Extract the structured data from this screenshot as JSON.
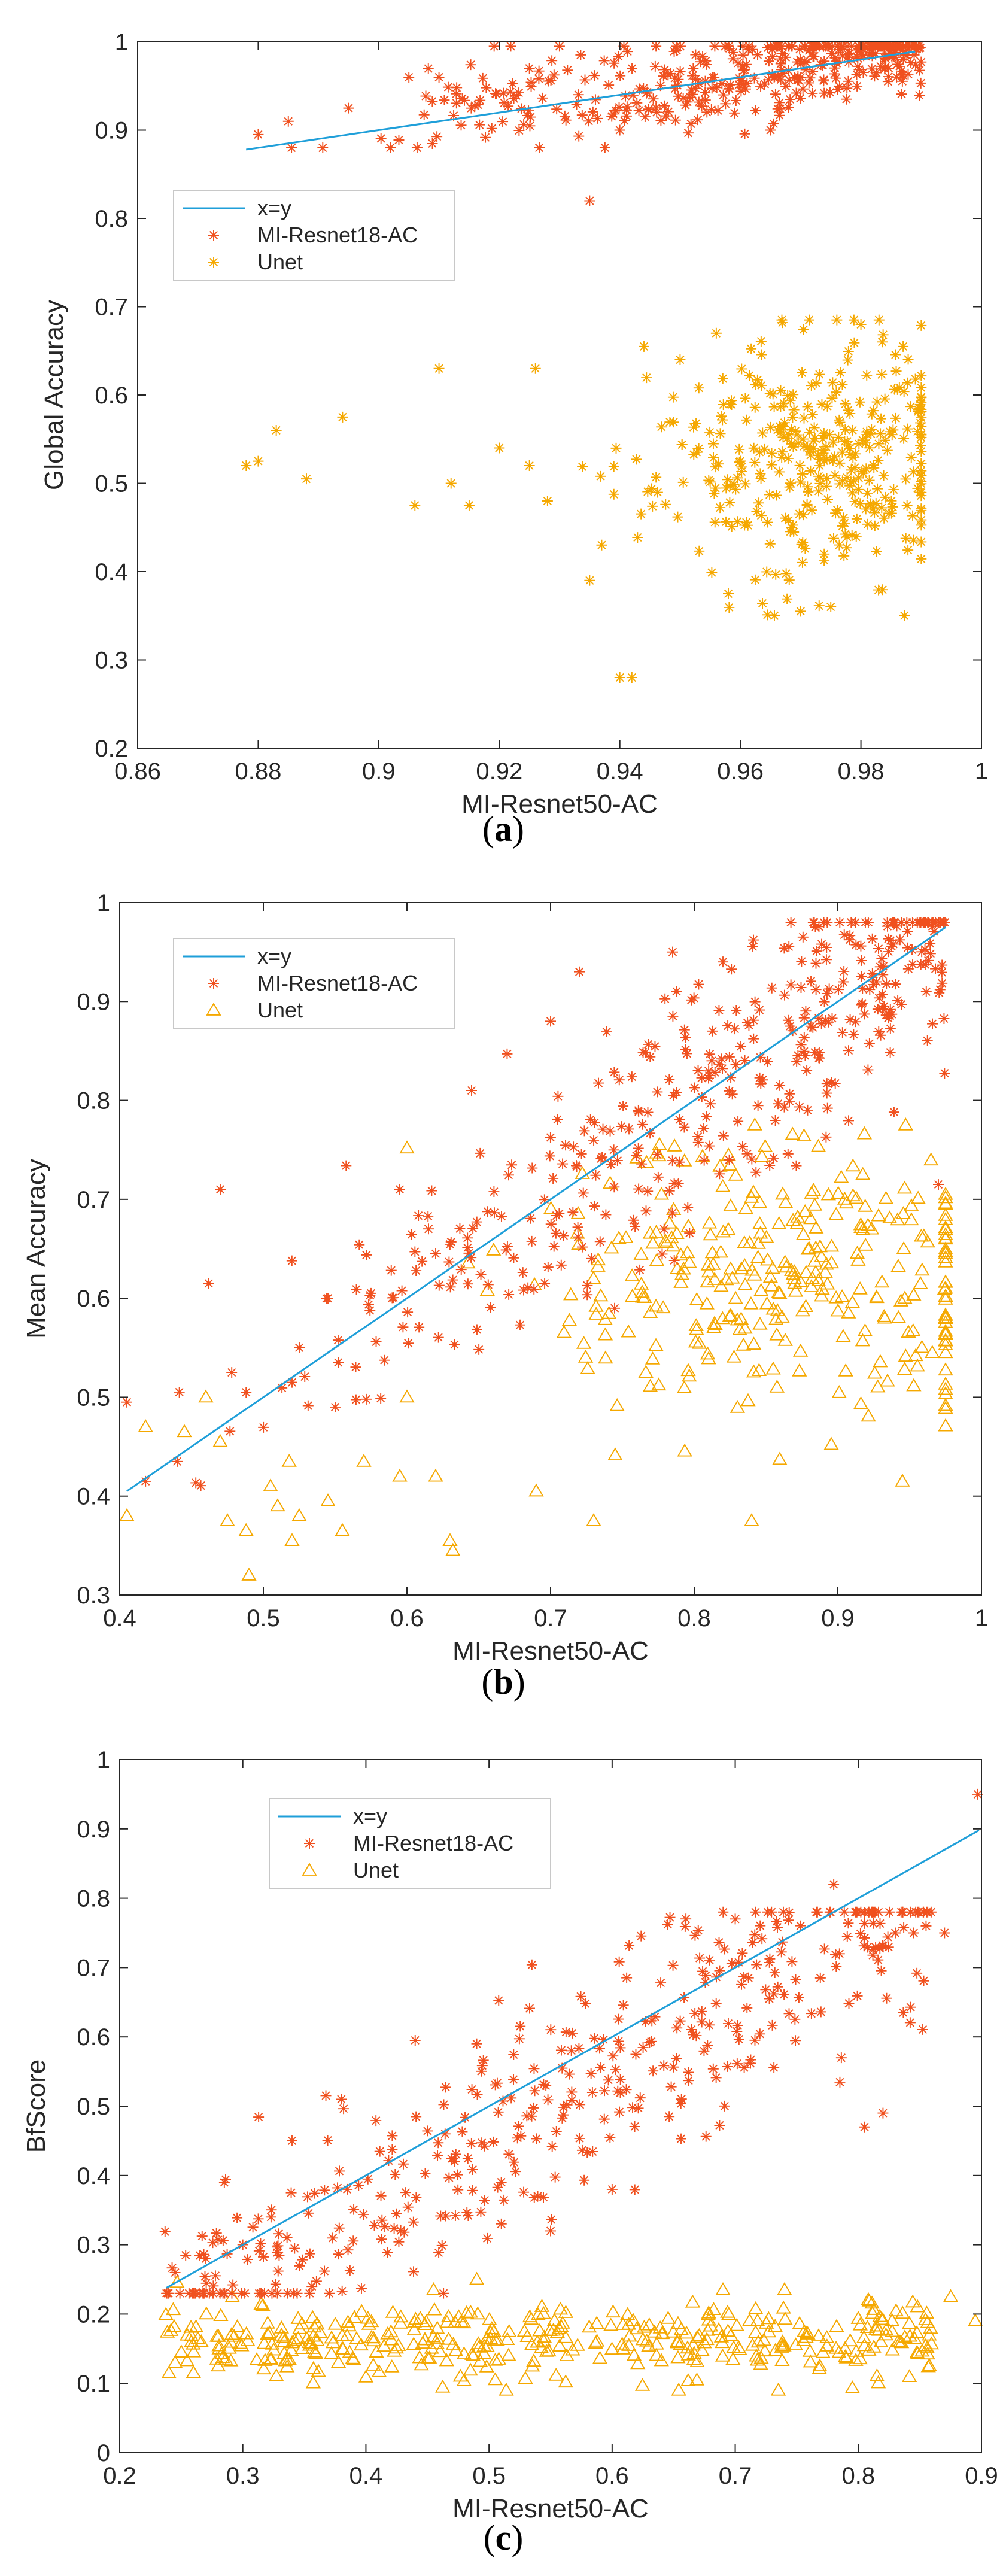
{
  "colors": {
    "xy_line": "#1f9fd9",
    "resnet18": "#f0501e",
    "unet": "#f5a800",
    "axis": "#262626"
  },
  "chart_data": [
    {
      "type": "scatter",
      "panel": "a",
      "caption_letter": "a",
      "caption_open": "(",
      "caption_close": ")",
      "xlabel": "MI-Resnet50-AC",
      "ylabel": "Global Accuracy",
      "xlim": [
        0.86,
        1.0
      ],
      "ylim": [
        0.2,
        1.0
      ],
      "xticks": [
        0.86,
        0.88,
        0.9,
        0.92,
        0.94,
        0.96,
        0.98,
        1
      ],
      "xtick_labels": [
        "0.86",
        "0.88",
        "0.9",
        "0.92",
        "0.94",
        "0.96",
        "0.98",
        "1"
      ],
      "yticks": [
        0.2,
        0.3,
        0.4,
        0.5,
        0.6,
        0.7,
        0.8,
        0.9,
        1
      ],
      "ytick_labels": [
        "0.2",
        "0.3",
        "0.4",
        "0.5",
        "0.6",
        "0.7",
        "0.8",
        "0.9",
        "1"
      ],
      "legend_location": "upper-left",
      "unet_marker": "star",
      "legend": [
        "x=y",
        "MI-Resnet18-AC",
        "Unet"
      ],
      "line": {
        "name": "x=y",
        "x": [
          0.878,
          0.989
        ],
        "y": [
          0.878,
          0.989
        ]
      },
      "series": [
        {
          "name": "MI-Resnet18-AC",
          "generator": {
            "type": "band",
            "n": 420,
            "seed": 11,
            "x_range": [
              0.878,
              0.99
            ],
            "x_skew": 0.35,
            "y_offset": 0.006,
            "y_spread": 0.028,
            "y_min": 0.88,
            "y_max": 0.995
          },
          "points": [
            [
              0.935,
              0.82
            ],
            [
              0.88,
              0.895
            ],
            [
              0.885,
              0.91
            ],
            [
              0.895,
              0.925
            ],
            [
              0.905,
              0.96
            ],
            [
              0.91,
              0.96
            ],
            [
              0.925,
              0.97
            ],
            [
              0.94,
              0.9
            ],
            [
              0.965,
              0.9
            ]
          ]
        },
        {
          "name": "Unet",
          "generator": {
            "type": "blob",
            "n": 380,
            "seed": 23,
            "cx": 0.972,
            "cy": 0.525,
            "sx": 0.013,
            "sy": 0.065,
            "x_min": 0.9,
            "x_max": 0.99,
            "y_min": 0.35,
            "y_max": 0.685
          },
          "points": [
            [
              0.878,
              0.52
            ],
            [
              0.88,
              0.525
            ],
            [
              0.883,
              0.56
            ],
            [
              0.888,
              0.505
            ],
            [
              0.894,
              0.575
            ],
            [
              0.906,
              0.475
            ],
            [
              0.91,
              0.63
            ],
            [
              0.912,
              0.5
            ],
            [
              0.915,
              0.475
            ],
            [
              0.92,
              0.54
            ],
            [
              0.925,
              0.52
            ],
            [
              0.926,
              0.63
            ],
            [
              0.928,
              0.48
            ],
            [
              0.935,
              0.39
            ],
            [
              0.937,
              0.43
            ],
            [
              0.94,
              0.28
            ],
            [
              0.942,
              0.28
            ],
            [
              0.944,
              0.655
            ],
            [
              0.95,
              0.64
            ],
            [
              0.956,
              0.67
            ],
            [
              0.958,
              0.375
            ],
            [
              0.975,
              0.36
            ],
            [
              0.98,
              0.68
            ],
            [
              0.983,
              0.685
            ],
            [
              0.987,
              0.655
            ],
            [
              0.97,
              0.355
            ]
          ]
        }
      ]
    },
    {
      "type": "scatter",
      "panel": "b",
      "caption_letter": "b",
      "caption_open": "(",
      "caption_close": ")",
      "xlabel": "MI-Resnet50-AC",
      "ylabel": "Mean Accuracy",
      "xlim": [
        0.4,
        1.0
      ],
      "ylim": [
        0.3,
        1.0
      ],
      "xticks": [
        0.4,
        0.5,
        0.6,
        0.7,
        0.8,
        0.9,
        1
      ],
      "xtick_labels": [
        "0.4",
        "0.5",
        "0.6",
        "0.7",
        "0.8",
        "0.9",
        "1"
      ],
      "yticks": [
        0.3,
        0.4,
        0.5,
        0.6,
        0.7,
        0.8,
        0.9,
        1
      ],
      "ytick_labels": [
        "0.3",
        "0.4",
        "0.5",
        "0.6",
        "0.7",
        "0.8",
        "0.9",
        "1"
      ],
      "legend_location": "upper-left",
      "unet_marker": "triangle",
      "legend": [
        "x=y",
        "MI-Resnet18-AC",
        "Unet"
      ],
      "line": {
        "name": "x=y",
        "x": [
          0.405,
          0.975
        ],
        "y": [
          0.405,
          0.975
        ]
      },
      "series": [
        {
          "name": "MI-Resnet18-AC",
          "generator": {
            "type": "band",
            "n": 420,
            "seed": 37,
            "x_range": [
              0.4,
              0.975
            ],
            "x_skew": 0.45,
            "y_offset": -0.005,
            "y_spread": 0.06,
            "y_min": 0.41,
            "y_max": 0.98
          },
          "points": [
            [
              0.405,
              0.495
            ],
            [
              0.418,
              0.415
            ],
            [
              0.44,
              0.435
            ],
            [
              0.462,
              0.615
            ],
            [
              0.47,
              0.71
            ],
            [
              0.478,
              0.525
            ],
            [
              0.488,
              0.505
            ],
            [
              0.52,
              0.515
            ],
            [
              0.525,
              0.55
            ],
            [
              0.545,
              0.6
            ],
            [
              0.55,
              0.49
            ],
            [
              0.575,
              0.605
            ],
            [
              0.595,
              0.71
            ],
            [
              0.62,
              0.645
            ],
            [
              0.645,
              0.81
            ],
            [
              0.7,
              0.88
            ],
            [
              0.72,
              0.93
            ],
            [
              0.785,
              0.95
            ],
            [
              0.82,
              0.94
            ],
            [
              0.97,
              0.715
            ]
          ]
        },
        {
          "name": "Unet",
          "generator": {
            "type": "blob",
            "n": 330,
            "seed": 51,
            "cx": 0.87,
            "cy": 0.615,
            "sx": 0.09,
            "sy": 0.07,
            "x_min": 0.6,
            "x_max": 0.975,
            "y_min": 0.38,
            "y_max": 0.775
          },
          "points": [
            [
              0.405,
              0.38
            ],
            [
              0.418,
              0.47
            ],
            [
              0.445,
              0.465
            ],
            [
              0.46,
              0.5
            ],
            [
              0.47,
              0.455
            ],
            [
              0.475,
              0.375
            ],
            [
              0.488,
              0.365
            ],
            [
              0.49,
              0.32
            ],
            [
              0.505,
              0.41
            ],
            [
              0.51,
              0.39
            ],
            [
              0.518,
              0.435
            ],
            [
              0.52,
              0.355
            ],
            [
              0.525,
              0.38
            ],
            [
              0.545,
              0.395
            ],
            [
              0.555,
              0.365
            ],
            [
              0.57,
              0.435
            ],
            [
              0.595,
              0.42
            ],
            [
              0.6,
              0.5
            ],
            [
              0.62,
              0.42
            ],
            [
              0.63,
              0.355
            ],
            [
              0.632,
              0.345
            ],
            [
              0.69,
              0.405
            ],
            [
              0.73,
              0.375
            ],
            [
              0.84,
              0.375
            ],
            [
              0.945,
              0.415
            ]
          ]
        }
      ]
    },
    {
      "type": "scatter",
      "panel": "c",
      "caption_letter": "c",
      "caption_open": "(",
      "caption_close": ")",
      "xlabel": "MI-Resnet50-AC",
      "ylabel": "BfScore",
      "xlim": [
        0.2,
        0.9
      ],
      "ylim": [
        0,
        1.0
      ],
      "xticks": [
        0.2,
        0.3,
        0.4,
        0.5,
        0.6,
        0.7,
        0.8,
        0.9
      ],
      "xtick_labels": [
        "0.2",
        "0.3",
        "0.4",
        "0.5",
        "0.6",
        "0.7",
        "0.8",
        "0.9"
      ],
      "yticks": [
        0,
        0.1,
        0.2,
        0.3,
        0.4,
        0.5,
        0.6,
        0.7,
        0.8,
        0.9,
        1
      ],
      "ytick_labels": [
        "0",
        "0.1",
        "0.2",
        "0.3",
        "0.4",
        "0.5",
        "0.6",
        "0.7",
        "0.8",
        "0.9",
        "1"
      ],
      "legend_location": "upper-left",
      "unet_marker": "triangle",
      "legend": [
        "x=y",
        "MI-Resnet18-AC",
        "Unet"
      ],
      "line": {
        "name": "x=y",
        "x": [
          0.238,
          0.898
        ],
        "y": [
          0.238,
          0.898
        ]
      },
      "series": [
        {
          "name": "MI-Resnet18-AC",
          "generator": {
            "type": "band",
            "n": 420,
            "seed": 73,
            "x_range": [
              0.235,
              0.86
            ],
            "x_skew": 0.9,
            "y_offset": -0.035,
            "y_spread": 0.085,
            "y_min": 0.23,
            "y_max": 0.78
          },
          "points": [
            [
              0.238,
              0.23
            ],
            [
              0.245,
              0.26
            ],
            [
              0.27,
              0.28
            ],
            [
              0.285,
              0.39
            ],
            [
              0.3,
              0.3
            ],
            [
              0.34,
              0.45
            ],
            [
              0.38,
              0.51
            ],
            [
              0.44,
              0.595
            ],
            [
              0.49,
              0.59
            ],
            [
              0.51,
              0.33
            ],
            [
              0.55,
              0.32
            ],
            [
              0.6,
              0.38
            ],
            [
              0.7,
              0.77
            ],
            [
              0.78,
              0.82
            ],
            [
              0.805,
              0.47
            ],
            [
              0.82,
              0.49
            ],
            [
              0.83,
              0.75
            ],
            [
              0.845,
              0.75
            ],
            [
              0.855,
              0.76
            ],
            [
              0.87,
              0.75
            ],
            [
              0.897,
              0.95
            ]
          ]
        },
        {
          "name": "Unet",
          "generator": {
            "type": "uniform",
            "n": 400,
            "seed": 97,
            "x_min": 0.235,
            "x_max": 0.86,
            "cy": 0.16,
            "sy": 0.028,
            "y_min": 0.09,
            "y_max": 0.25
          },
          "points": [
            [
              0.24,
              0.115
            ],
            [
              0.245,
              0.13
            ],
            [
              0.25,
              0.145
            ],
            [
              0.28,
              0.125
            ],
            [
              0.49,
              0.25
            ],
            [
              0.455,
              0.235
            ],
            [
              0.74,
              0.235
            ],
            [
              0.69,
              0.235
            ],
            [
              0.735,
              0.09
            ],
            [
              0.505,
              0.105
            ],
            [
              0.875,
              0.225
            ],
            [
              0.895,
              0.19
            ]
          ]
        }
      ]
    }
  ]
}
